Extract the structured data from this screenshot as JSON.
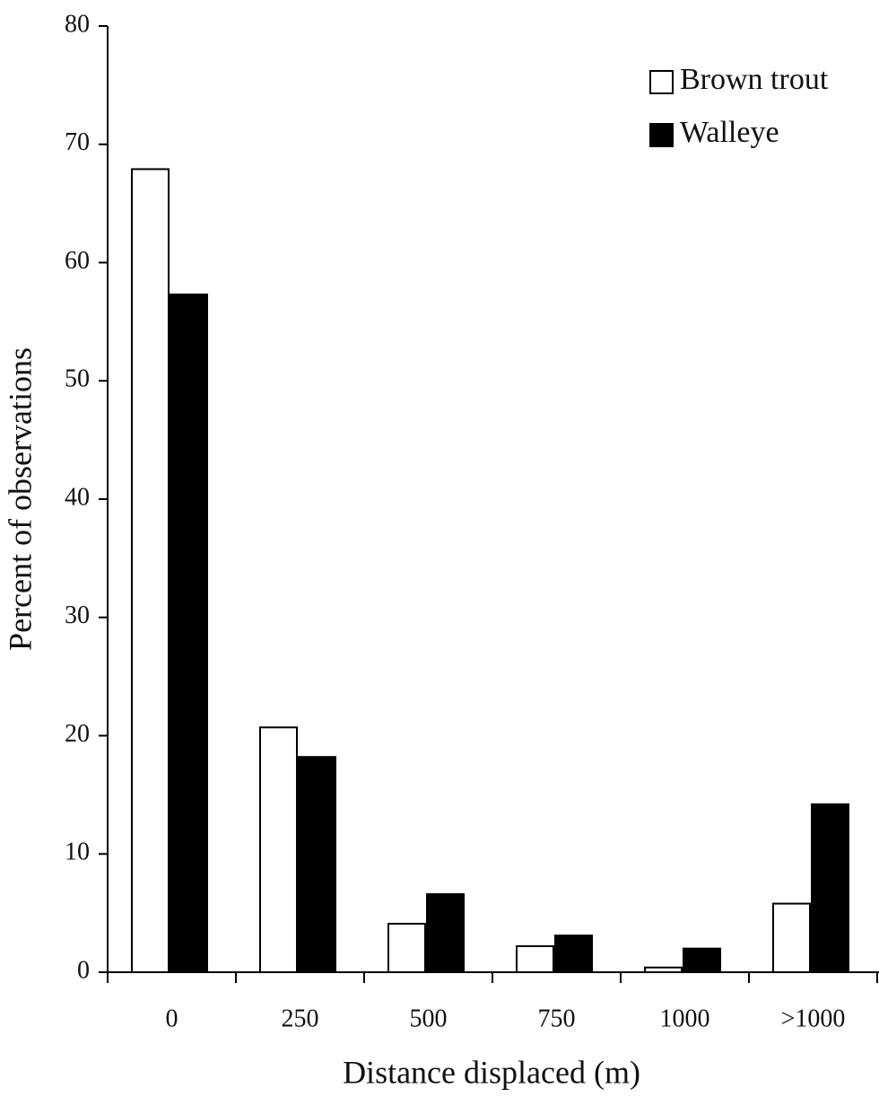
{
  "chart_data": {
    "type": "bar",
    "categories": [
      "0",
      "250",
      "500",
      "750",
      "1000",
      ">1000"
    ],
    "series": [
      {
        "name": "Brown trout",
        "color": "#ffffff",
        "values": [
          67.9,
          20.7,
          4.1,
          2.2,
          0.4,
          5.8
        ]
      },
      {
        "name": "Walleye",
        "color": "#000000",
        "values": [
          57.3,
          18.2,
          6.6,
          3.1,
          2.0,
          14.2
        ]
      }
    ],
    "x_label": "Distance displaced (m)",
    "y_label": "Percent of observations",
    "ylim": [
      0,
      80
    ],
    "yticks": [
      0,
      10,
      20,
      30,
      40,
      50,
      60,
      70,
      80
    ],
    "grid": false,
    "legend": "upper right"
  }
}
